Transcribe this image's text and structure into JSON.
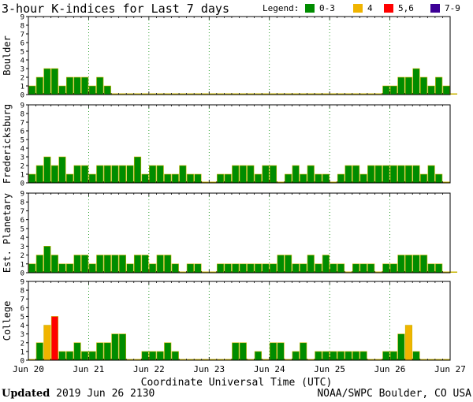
{
  "header": {
    "title": "3-hour K-indices for Last 7 days",
    "legend_label": "Legend:",
    "legend": [
      {
        "label": "0-3",
        "color": "#008c00"
      },
      {
        "label": "4",
        "color": "#f0b400"
      },
      {
        "label": "5,6",
        "color": "#ff0000"
      },
      {
        "label": "7-9",
        "color": "#3c0096"
      }
    ]
  },
  "footer": {
    "updated_label": "Updated",
    "updated_value": "2019 Jun 26 2130",
    "source": "NOAA/SWPC Boulder, CO USA"
  },
  "chart_data": [
    {
      "type": "bar",
      "title": "Boulder",
      "ylim": [
        0,
        9
      ],
      "ytick_labels": [
        "0",
        "1",
        "2",
        "3",
        "4",
        "5",
        "6",
        "7",
        "8",
        "9"
      ],
      "xlabel": "Coordinate Universal Time (UTC)",
      "xtick_labels": [
        "Jun 20",
        "Jun 21",
        "Jun 22",
        "Jun 23",
        "Jun 24",
        "Jun 25",
        "Jun 26",
        "Jun 27"
      ],
      "values": [
        1,
        2,
        3,
        3,
        1,
        2,
        2,
        2,
        1,
        2,
        1,
        0,
        0,
        0,
        0,
        0,
        0,
        0,
        0,
        0,
        0,
        0,
        0,
        0,
        0,
        0,
        0,
        0,
        0,
        0,
        0,
        0,
        0,
        0,
        0,
        0,
        0,
        0,
        0,
        0,
        0,
        0,
        0,
        0,
        0,
        0,
        0,
        1,
        1,
        2,
        2,
        3,
        2,
        1,
        2,
        1,
        0
      ]
    },
    {
      "type": "bar",
      "title": "Fredericksburg",
      "ylim": [
        0,
        9
      ],
      "ytick_labels": [
        "0",
        "1",
        "2",
        "3",
        "4",
        "5",
        "6",
        "7",
        "8",
        "9"
      ],
      "xlabel": "Coordinate Universal Time (UTC)",
      "xtick_labels": [
        "Jun 20",
        "Jun 21",
        "Jun 22",
        "Jun 23",
        "Jun 24",
        "Jun 25",
        "Jun 26",
        "Jun 27"
      ],
      "values": [
        1,
        2,
        3,
        2,
        3,
        1,
        2,
        2,
        1,
        2,
        2,
        2,
        2,
        2,
        3,
        1,
        2,
        2,
        1,
        1,
        2,
        1,
        1,
        0,
        0,
        1,
        1,
        2,
        2,
        2,
        1,
        2,
        2,
        0,
        1,
        2,
        1,
        2,
        1,
        1,
        0,
        1,
        2,
        2,
        1,
        2,
        2,
        2,
        2,
        2,
        2,
        2,
        1,
        2,
        1,
        0
      ]
    },
    {
      "type": "bar",
      "title": "Est. Planetary",
      "ylim": [
        0,
        9
      ],
      "ytick_labels": [
        "0",
        "1",
        "2",
        "3",
        "4",
        "5",
        "6",
        "7",
        "8",
        "9"
      ],
      "xlabel": "Coordinate Universal Time (UTC)",
      "xtick_labels": [
        "Jun 20",
        "Jun 21",
        "Jun 22",
        "Jun 23",
        "Jun 24",
        "Jun 25",
        "Jun 26",
        "Jun 27"
      ],
      "values": [
        1,
        2,
        3,
        2,
        1,
        1,
        2,
        2,
        1,
        2,
        2,
        2,
        2,
        1,
        2,
        2,
        1,
        2,
        2,
        1,
        0,
        1,
        1,
        0,
        0,
        1,
        1,
        1,
        1,
        1,
        1,
        1,
        1,
        2,
        2,
        1,
        1,
        2,
        1,
        2,
        1,
        1,
        0,
        1,
        1,
        1,
        0,
        1,
        1,
        2,
        2,
        2,
        2,
        1,
        1,
        0,
        0
      ]
    },
    {
      "type": "bar",
      "title": "College",
      "ylim": [
        0,
        9
      ],
      "ytick_labels": [
        "0",
        "1",
        "2",
        "3",
        "4",
        "5",
        "6",
        "7",
        "8",
        "9"
      ],
      "xlabel": "Coordinate Universal Time (UTC)",
      "xtick_labels": [
        "Jun 20",
        "Jun 21",
        "Jun 22",
        "Jun 23",
        "Jun 24",
        "Jun 25",
        "Jun 26",
        "Jun 27"
      ],
      "values": [
        0,
        2,
        4,
        5,
        1,
        1,
        2,
        1,
        1,
        2,
        2,
        3,
        3,
        0,
        0,
        1,
        1,
        1,
        2,
        1,
        0,
        0,
        0,
        0,
        0,
        0,
        0,
        2,
        2,
        0,
        1,
        0,
        2,
        2,
        0,
        1,
        2,
        0,
        1,
        1,
        1,
        1,
        1,
        1,
        1,
        0,
        0,
        1,
        1,
        3,
        4,
        1,
        0,
        0,
        0,
        0
      ]
    }
  ]
}
